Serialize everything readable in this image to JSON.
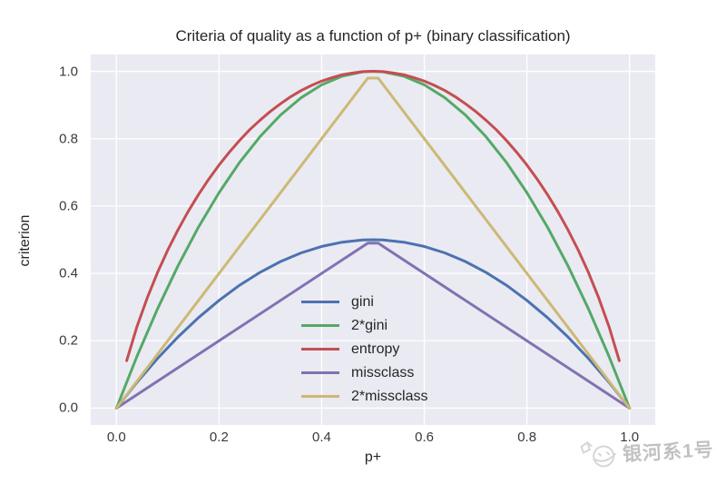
{
  "title": "Criteria of quality as a function of p+ (binary classification)",
  "axes": {
    "xlabel": "p+",
    "ylabel": "criterion",
    "x_tick_labels": [
      "0.0",
      "0.2",
      "0.4",
      "0.6",
      "0.8",
      "1.0"
    ],
    "y_tick_labels": [
      "0.0",
      "0.2",
      "0.4",
      "0.6",
      "0.8",
      "1.0"
    ],
    "x_tick_values": [
      0.0,
      0.2,
      0.4,
      0.6,
      0.8,
      1.0
    ],
    "y_tick_values": [
      0.0,
      0.2,
      0.4,
      0.6,
      0.8,
      1.0
    ]
  },
  "style": {
    "plot_bg": "#EAEAF2",
    "grid_color": "#FFFFFF",
    "line_width": 3
  },
  "legend": {
    "entries": [
      {
        "label": "gini",
        "color": "#4C72B0"
      },
      {
        "label": "2*gini",
        "color": "#55A868"
      },
      {
        "label": "entropy",
        "color": "#C44E52"
      },
      {
        "label": "missclass",
        "color": "#8172B2"
      },
      {
        "label": "2*missclass",
        "color": "#CCB974"
      }
    ]
  },
  "watermark": {
    "text": "银河系1号"
  },
  "chart_data": {
    "type": "line",
    "title": "Criteria of quality as a function of p+ (binary classification)",
    "xlabel": "p+",
    "ylabel": "criterion",
    "xlim": [
      -0.05,
      1.05
    ],
    "ylim": [
      -0.05,
      1.05
    ],
    "grid": true,
    "legend_position": "center-left-inside",
    "series": [
      {
        "name": "gini",
        "color": "#4C72B0",
        "points": [
          [
            0,
            0
          ],
          [
            0.04,
            0.0768
          ],
          [
            0.08,
            0.1472
          ],
          [
            0.12,
            0.2112
          ],
          [
            0.16,
            0.2688
          ],
          [
            0.2,
            0.32
          ],
          [
            0.24,
            0.3648
          ],
          [
            0.28,
            0.4032
          ],
          [
            0.32,
            0.4352
          ],
          [
            0.36,
            0.4608
          ],
          [
            0.4,
            0.48
          ],
          [
            0.44,
            0.4928
          ],
          [
            0.48,
            0.4992
          ],
          [
            0.5,
            0.5
          ],
          [
            0.52,
            0.4992
          ],
          [
            0.56,
            0.4928
          ],
          [
            0.6,
            0.48
          ],
          [
            0.64,
            0.4608
          ],
          [
            0.68,
            0.4352
          ],
          [
            0.72,
            0.4032
          ],
          [
            0.76,
            0.3648
          ],
          [
            0.8,
            0.32
          ],
          [
            0.84,
            0.2688
          ],
          [
            0.88,
            0.2112
          ],
          [
            0.92,
            0.1472
          ],
          [
            0.96,
            0.0768
          ],
          [
            1,
            0
          ]
        ]
      },
      {
        "name": "2*gini",
        "color": "#55A868",
        "points": [
          [
            0,
            0
          ],
          [
            0.04,
            0.1536
          ],
          [
            0.08,
            0.2944
          ],
          [
            0.12,
            0.4224
          ],
          [
            0.16,
            0.5376
          ],
          [
            0.2,
            0.64
          ],
          [
            0.24,
            0.7296
          ],
          [
            0.28,
            0.8064
          ],
          [
            0.32,
            0.8704
          ],
          [
            0.36,
            0.9216
          ],
          [
            0.4,
            0.96
          ],
          [
            0.44,
            0.9856
          ],
          [
            0.48,
            0.9984
          ],
          [
            0.5,
            1.0
          ],
          [
            0.52,
            0.9984
          ],
          [
            0.56,
            0.9856
          ],
          [
            0.6,
            0.96
          ],
          [
            0.64,
            0.9216
          ],
          [
            0.68,
            0.8704
          ],
          [
            0.72,
            0.8064
          ],
          [
            0.76,
            0.7296
          ],
          [
            0.8,
            0.64
          ],
          [
            0.84,
            0.5376
          ],
          [
            0.88,
            0.4224
          ],
          [
            0.92,
            0.2944
          ],
          [
            0.96,
            0.1536
          ],
          [
            1,
            0
          ]
        ]
      },
      {
        "name": "entropy",
        "color": "#C44E52",
        "points": [
          [
            0.02,
            0.141
          ],
          [
            0.04,
            0.242
          ],
          [
            0.06,
            0.327
          ],
          [
            0.08,
            0.402
          ],
          [
            0.1,
            0.469
          ],
          [
            0.12,
            0.529
          ],
          [
            0.14,
            0.584
          ],
          [
            0.16,
            0.634
          ],
          [
            0.18,
            0.68
          ],
          [
            0.2,
            0.722
          ],
          [
            0.22,
            0.76
          ],
          [
            0.24,
            0.795
          ],
          [
            0.26,
            0.827
          ],
          [
            0.28,
            0.855
          ],
          [
            0.3,
            0.881
          ],
          [
            0.32,
            0.904
          ],
          [
            0.34,
            0.925
          ],
          [
            0.36,
            0.943
          ],
          [
            0.38,
            0.958
          ],
          [
            0.4,
            0.971
          ],
          [
            0.42,
            0.981
          ],
          [
            0.44,
            0.99
          ],
          [
            0.46,
            0.995
          ],
          [
            0.48,
            0.999
          ],
          [
            0.5,
            1.0
          ],
          [
            0.52,
            0.999
          ],
          [
            0.54,
            0.995
          ],
          [
            0.56,
            0.99
          ],
          [
            0.58,
            0.981
          ],
          [
            0.6,
            0.971
          ],
          [
            0.62,
            0.958
          ],
          [
            0.64,
            0.943
          ],
          [
            0.66,
            0.925
          ],
          [
            0.68,
            0.904
          ],
          [
            0.7,
            0.881
          ],
          [
            0.72,
            0.855
          ],
          [
            0.74,
            0.827
          ],
          [
            0.76,
            0.795
          ],
          [
            0.78,
            0.76
          ],
          [
            0.8,
            0.722
          ],
          [
            0.82,
            0.68
          ],
          [
            0.84,
            0.634
          ],
          [
            0.86,
            0.584
          ],
          [
            0.88,
            0.529
          ],
          [
            0.9,
            0.469
          ],
          [
            0.92,
            0.402
          ],
          [
            0.94,
            0.327
          ],
          [
            0.96,
            0.242
          ],
          [
            0.98,
            0.141
          ]
        ]
      },
      {
        "name": "missclass",
        "color": "#8172B2",
        "points": [
          [
            0,
            0
          ],
          [
            0.49,
            0.49
          ],
          [
            0.51,
            0.49
          ],
          [
            1,
            0
          ]
        ]
      },
      {
        "name": "2*missclass",
        "color": "#CCB974",
        "points": [
          [
            0,
            0
          ],
          [
            0.49,
            0.98
          ],
          [
            0.51,
            0.98
          ],
          [
            1,
            0
          ]
        ]
      }
    ]
  }
}
